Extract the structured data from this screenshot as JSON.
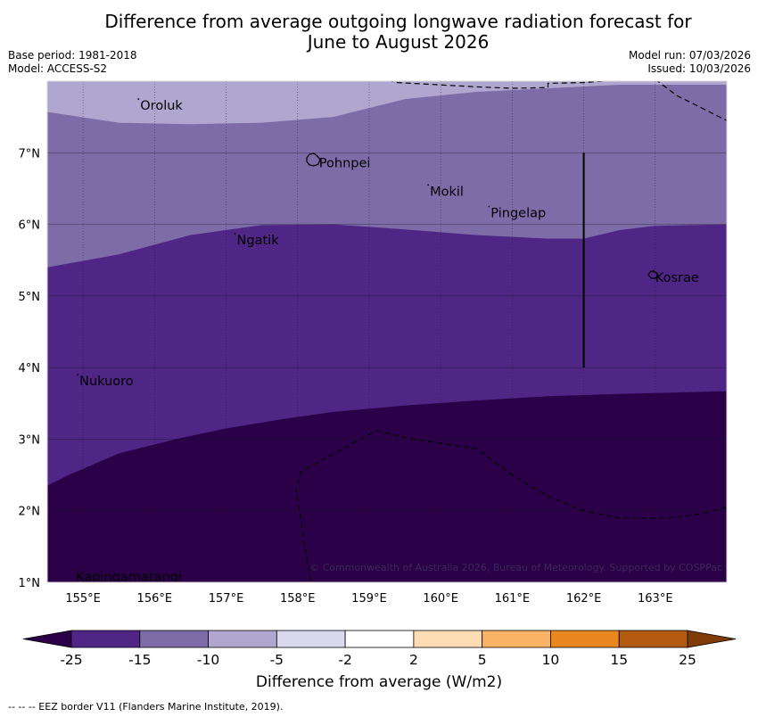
{
  "title_line1": "Difference from average outgoing longwave radiation forecast for",
  "title_line2": "June to August 2026",
  "base_period": "Base period: 1981-2018",
  "model": "Model: ACCESS-S2",
  "model_run": "Model run: 07/03/2026",
  "issued": "Issued: 10/03/2026",
  "copyright": "© Commonwealth of Australia 2026, Bureau of Meteorology. Supported by COSPPac",
  "footer": "-- -- -- EEZ border V11 (Flanders Marine Institute, 2019).",
  "map": {
    "lon_range": [
      154.5,
      164.0
    ],
    "lat_range": [
      1.0,
      8.0
    ],
    "lon_ticks": [
      155,
      156,
      157,
      158,
      159,
      160,
      161,
      162,
      163
    ],
    "lon_labels": [
      "155°E",
      "156°E",
      "157°E",
      "158°E",
      "159°E",
      "160°E",
      "161°E",
      "162°E",
      "163°E"
    ],
    "lat_ticks": [
      1,
      2,
      3,
      4,
      5,
      6,
      7
    ],
    "lat_labels": [
      "1°N",
      "2°N",
      "3°N",
      "4°N",
      "5°N",
      "6°N",
      "7°N"
    ],
    "places": [
      {
        "name": "Oroluk",
        "lon": 155.8,
        "lat": 7.7
      },
      {
        "name": "Pohnpei",
        "lon": 158.3,
        "lat": 6.9
      },
      {
        "name": "Mokil",
        "lon": 159.85,
        "lat": 6.5
      },
      {
        "name": "Pingelap",
        "lon": 160.7,
        "lat": 6.2
      },
      {
        "name": "Ngatik",
        "lon": 157.15,
        "lat": 5.82
      },
      {
        "name": "Kosrae",
        "lon": 163.0,
        "lat": 5.3
      },
      {
        "name": "Nukuoro",
        "lon": 154.95,
        "lat": 3.85
      },
      {
        "name": "Kapingamarangi",
        "lon": 154.9,
        "lat": 1.12
      }
    ],
    "contour_bounds": {
      "neg10_top": [
        [
          154.5,
          7.57
        ],
        [
          155.5,
          7.42
        ],
        [
          156.5,
          7.4
        ],
        [
          157.5,
          7.42
        ],
        [
          158.5,
          7.5
        ],
        [
          159.5,
          7.75
        ],
        [
          160.5,
          7.85
        ],
        [
          161.5,
          7.9
        ],
        [
          162.5,
          7.95
        ],
        [
          164.0,
          7.95
        ]
      ],
      "neg15_top": [
        [
          154.5,
          5.4
        ],
        [
          155.5,
          5.58
        ],
        [
          156.5,
          5.85
        ],
        [
          157.5,
          5.99
        ],
        [
          158.5,
          6.0
        ],
        [
          159.5,
          5.93
        ],
        [
          160.5,
          5.85
        ],
        [
          161.5,
          5.8
        ],
        [
          162.0,
          5.8
        ],
        [
          162.5,
          5.92
        ],
        [
          163.0,
          5.98
        ],
        [
          164.0,
          6.0
        ]
      ],
      "neg25_top": [
        [
          154.5,
          2.35
        ],
        [
          154.8,
          2.5
        ],
        [
          155.5,
          2.8
        ],
        [
          156.3,
          3.0
        ],
        [
          157.0,
          3.15
        ],
        [
          157.8,
          3.28
        ],
        [
          158.5,
          3.38
        ],
        [
          159.5,
          3.47
        ],
        [
          160.5,
          3.54
        ],
        [
          161.5,
          3.6
        ],
        [
          162.5,
          3.63
        ],
        [
          164.0,
          3.67
        ]
      ]
    },
    "eez_lines": [
      [
        [
          158.9,
          8.1
        ],
        [
          159.4,
          7.98
        ],
        [
          160.5,
          7.92
        ],
        [
          161.0,
          7.9
        ],
        [
          161.5,
          7.91
        ],
        [
          161.5,
          7.97
        ],
        [
          162.0,
          7.98
        ],
        [
          163.0,
          8.05
        ]
      ],
      [
        [
          162.9,
          8.1
        ],
        [
          163.3,
          7.8
        ],
        [
          164.0,
          7.45
        ]
      ],
      [
        [
          158.2,
          0.9
        ],
        [
          158.1,
          1.5
        ],
        [
          157.98,
          2.3
        ],
        [
          158.05,
          2.55
        ],
        [
          159.1,
          3.12
        ],
        [
          159.6,
          3.0
        ],
        [
          160.5,
          2.87
        ],
        [
          161.0,
          2.5
        ],
        [
          161.5,
          2.2
        ],
        [
          162.0,
          2.0
        ],
        [
          162.5,
          1.9
        ],
        [
          163.2,
          1.9
        ],
        [
          163.6,
          1.95
        ],
        [
          164.0,
          2.05
        ]
      ]
    ],
    "solid_line": {
      "lon": 162.0,
      "lat_from": 4.0,
      "lat_to": 7.0
    }
  },
  "colorbar": {
    "title": "Difference from average (W/m2)",
    "tick_labels": [
      "-25",
      "-15",
      "-10",
      "-5",
      "-2",
      "2",
      "5",
      "10",
      "15",
      "25"
    ],
    "segment_colors": [
      "#4f2585",
      "#7e6ca8",
      "#b0a7d0",
      "#d9d8ed",
      "#ffffff",
      "#fddcb3",
      "#fbb466",
      "#e8881f",
      "#b35b0e"
    ],
    "under_color": "#2c0049",
    "over_color": "#7f3b08"
  },
  "colors": {
    "lt_neg25": "#2c0049",
    "neg25_neg15": "#4f2585",
    "neg15_neg10": "#7e6ca8",
    "neg10_neg5": "#b0a7d0"
  }
}
